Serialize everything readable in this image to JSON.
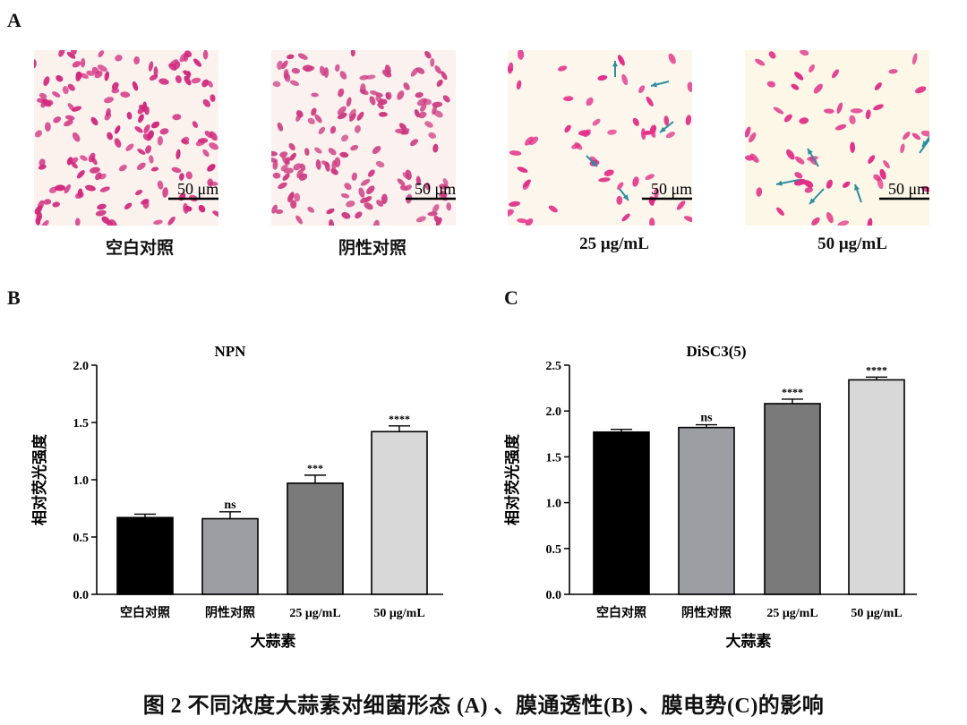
{
  "panels": {
    "a": "A",
    "b": "B",
    "c": "C"
  },
  "micrographs": [
    {
      "label": "空白对照",
      "scale": "50 μm",
      "bg": "#fbf2ee",
      "cell": "#d0287e",
      "density": "high",
      "arrows": 0
    },
    {
      "label": "阴性对照",
      "scale": "50 μm",
      "bg": "#fbf1ee",
      "cell": "#cc3a82",
      "density": "high",
      "arrows": 0
    },
    {
      "label": "25 μg/mL",
      "scale": "50 μm",
      "bg": "#fdf6ec",
      "cell": "#e2308a",
      "density": "low",
      "arrows": 5
    },
    {
      "label": "50 μg/mL",
      "scale": "50 μm",
      "bg": "#fdf7e8",
      "cell": "#e02e88",
      "density": "low",
      "arrows": 6
    }
  ],
  "arrow_color": "#2b8fa0",
  "chart_data": [
    {
      "type": "bar",
      "title": "NPN",
      "xlabel": "大蒜素",
      "ylabel": "相对荧光强度",
      "categories": [
        "空白对照",
        "阴性对照",
        "25 μg/mL",
        "50 μg/mL"
      ],
      "values": [
        0.67,
        0.66,
        0.97,
        1.42
      ],
      "errors": [
        0.03,
        0.06,
        0.07,
        0.05
      ],
      "significance": [
        "",
        "ns",
        "***",
        "****"
      ],
      "colors": [
        "#000000",
        "#9d9da4",
        "#7a7a7a",
        "#d8d8d8"
      ],
      "ylim": [
        0,
        2.0
      ],
      "yticks": [
        "0.0",
        "0.5",
        "1.0",
        "1.5",
        "2.0"
      ]
    },
    {
      "type": "bar",
      "title": "DiSC3(5)",
      "xlabel": "大蒜素",
      "ylabel": "相对荧光强度",
      "categories": [
        "空白对照",
        "阴性对照",
        "25 μg/mL",
        "50 μg/mL"
      ],
      "values": [
        1.77,
        1.82,
        2.08,
        2.34
      ],
      "errors": [
        0.03,
        0.03,
        0.05,
        0.03
      ],
      "significance": [
        "",
        "ns",
        "****",
        "****"
      ],
      "colors": [
        "#000000",
        "#9d9da4",
        "#7a7a7a",
        "#d8d8d8"
      ],
      "ylim": [
        0,
        2.5
      ],
      "yticks": [
        "0.0",
        "0.5",
        "1.0",
        "1.5",
        "2.0",
        "2.5"
      ]
    }
  ],
  "caption": "图 2 不同浓度大蒜素对细菌形态 (A) 、膜通透性(B) 、膜电势(C)的影响"
}
